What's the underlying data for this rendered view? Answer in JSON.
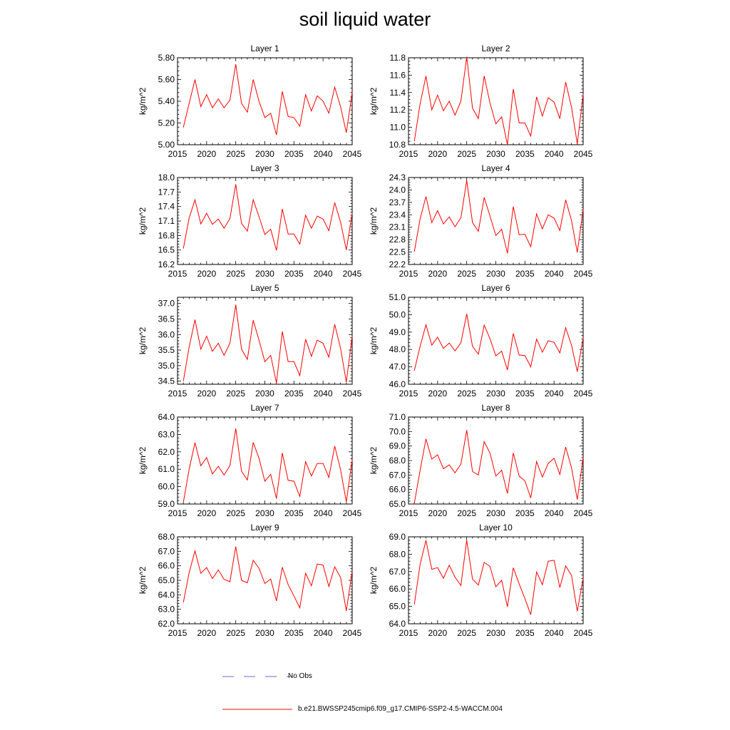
{
  "title": "soil liquid water",
  "legend": {
    "obs_label": "No Obs",
    "model_label": "b.e21.BWSSP245cmip6.f09_g17.CMIP6-SSP2-4.5-WACCM.004",
    "obs_color": "#6b6bd6",
    "model_color": "#ff0000"
  },
  "chart_data": [
    {
      "type": "line",
      "title": "Layer 1",
      "ylabel": "kg/m^2",
      "xlim": [
        2015,
        2045
      ],
      "ylim": [
        5.0,
        5.8
      ],
      "xticks": [
        2015,
        2020,
        2025,
        2030,
        2035,
        2040,
        2045
      ],
      "yticks": [
        "5.00",
        "5.20",
        "5.40",
        "5.60",
        "5.80"
      ],
      "x": [
        2016,
        2017,
        2018,
        2019,
        2020,
        2021,
        2022,
        2023,
        2024,
        2025,
        2026,
        2027,
        2028,
        2029,
        2030,
        2031,
        2032,
        2033,
        2034,
        2035,
        2036,
        2037,
        2038,
        2039,
        2040,
        2041,
        2042,
        2043,
        2044,
        2045
      ],
      "series": [
        {
          "color": "#ff0000",
          "values": [
            5.16,
            5.38,
            5.6,
            5.35,
            5.46,
            5.34,
            5.42,
            5.34,
            5.41,
            5.74,
            5.38,
            5.3,
            5.6,
            5.4,
            5.25,
            5.29,
            5.09,
            5.49,
            5.26,
            5.25,
            5.17,
            5.46,
            5.31,
            5.45,
            5.4,
            5.29,
            5.53,
            5.35,
            5.11,
            5.48
          ]
        }
      ]
    },
    {
      "type": "line",
      "title": "Layer 2",
      "ylabel": "kg/m^2",
      "xlim": [
        2015,
        2045
      ],
      "ylim": [
        10.8,
        11.8
      ],
      "xticks": [
        2015,
        2020,
        2025,
        2030,
        2035,
        2040,
        2045
      ],
      "yticks": [
        "10.8",
        "11.0",
        "11.2",
        "11.4",
        "11.6",
        "11.8"
      ],
      "x": [
        2016,
        2017,
        2018,
        2019,
        2020,
        2021,
        2022,
        2023,
        2024,
        2025,
        2026,
        2027,
        2028,
        2029,
        2030,
        2031,
        2032,
        2033,
        2034,
        2035,
        2036,
        2037,
        2038,
        2039,
        2040,
        2041,
        2042,
        2043,
        2044,
        2045
      ],
      "series": [
        {
          "color": "#ff0000",
          "values": [
            10.84,
            11.27,
            11.59,
            11.2,
            11.37,
            11.19,
            11.3,
            11.14,
            11.3,
            11.81,
            11.22,
            11.1,
            11.59,
            11.28,
            11.04,
            11.12,
            10.8,
            11.44,
            11.05,
            11.05,
            10.9,
            11.35,
            11.13,
            11.34,
            11.29,
            11.1,
            11.52,
            11.23,
            10.81,
            11.38
          ]
        }
      ]
    },
    {
      "type": "line",
      "title": "Layer 3",
      "ylabel": "kg/m^2",
      "xlim": [
        2015,
        2045
      ],
      "ylim": [
        16.2,
        18.0
      ],
      "xticks": [
        2015,
        2020,
        2025,
        2030,
        2035,
        2040,
        2045
      ],
      "yticks": [
        "16.2",
        "16.5",
        "16.8",
        "17.1",
        "17.4",
        "17.7",
        "18.0"
      ],
      "x": [
        2016,
        2017,
        2018,
        2019,
        2020,
        2021,
        2022,
        2023,
        2024,
        2025,
        2026,
        2027,
        2028,
        2029,
        2030,
        2031,
        2032,
        2033,
        2034,
        2035,
        2036,
        2037,
        2038,
        2039,
        2040,
        2041,
        2042,
        2043,
        2044,
        2045
      ],
      "series": [
        {
          "color": "#ff0000",
          "values": [
            16.53,
            17.16,
            17.54,
            17.04,
            17.26,
            17.03,
            17.14,
            16.95,
            17.15,
            17.86,
            17.05,
            16.89,
            17.54,
            17.19,
            16.82,
            16.93,
            16.49,
            17.35,
            16.83,
            16.83,
            16.62,
            17.22,
            16.95,
            17.2,
            17.14,
            16.9,
            17.48,
            17.08,
            16.5,
            17.26
          ]
        }
      ]
    },
    {
      "type": "line",
      "title": "Layer 4",
      "ylabel": "kg/m^2",
      "xlim": [
        2015,
        2045
      ],
      "ylim": [
        22.2,
        24.3
      ],
      "xticks": [
        2015,
        2020,
        2025,
        2030,
        2035,
        2040,
        2045
      ],
      "yticks": [
        "22.2",
        "22.5",
        "22.8",
        "23.1",
        "23.4",
        "23.7",
        "24.0",
        "24.3"
      ],
      "x": [
        2016,
        2017,
        2018,
        2019,
        2020,
        2021,
        2022,
        2023,
        2024,
        2025,
        2026,
        2027,
        2028,
        2029,
        2030,
        2031,
        2032,
        2033,
        2034,
        2035,
        2036,
        2037,
        2038,
        2039,
        2040,
        2041,
        2042,
        2043,
        2044,
        2045
      ],
      "series": [
        {
          "color": "#ff0000",
          "values": [
            22.51,
            23.3,
            23.84,
            23.21,
            23.5,
            23.18,
            23.35,
            23.11,
            23.33,
            24.23,
            23.21,
            23.0,
            23.82,
            23.37,
            22.9,
            23.05,
            22.47,
            23.6,
            22.92,
            22.93,
            22.63,
            23.42,
            23.06,
            23.4,
            23.32,
            23.02,
            23.76,
            23.26,
            22.49,
            23.53
          ]
        }
      ]
    },
    {
      "type": "line",
      "title": "Layer 5",
      "ylabel": "kg/m^2",
      "xlim": [
        2015,
        2045
      ],
      "ylim": [
        34.4,
        37.2
      ],
      "xticks": [
        2015,
        2020,
        2025,
        2030,
        2035,
        2040,
        2045
      ],
      "yticks": [
        "34.5",
        "35.0",
        "35.5",
        "36.0",
        "36.5",
        "37.0"
      ],
      "x": [
        2016,
        2017,
        2018,
        2019,
        2020,
        2021,
        2022,
        2023,
        2024,
        2025,
        2026,
        2027,
        2028,
        2029,
        2030,
        2031,
        2032,
        2033,
        2034,
        2035,
        2036,
        2037,
        2038,
        2039,
        2040,
        2041,
        2042,
        2043,
        2044,
        2045
      ],
      "series": [
        {
          "color": "#ff0000",
          "values": [
            34.5,
            35.6,
            36.48,
            35.53,
            35.95,
            35.46,
            35.72,
            35.33,
            35.72,
            36.96,
            35.53,
            35.2,
            36.46,
            35.82,
            35.13,
            35.33,
            34.44,
            36.1,
            35.13,
            35.13,
            34.68,
            35.85,
            35.3,
            35.82,
            35.72,
            35.27,
            36.33,
            35.56,
            34.47,
            35.95
          ]
        }
      ]
    },
    {
      "type": "line",
      "title": "Layer 6",
      "ylabel": "kg/m^2",
      "xlim": [
        2015,
        2045
      ],
      "ylim": [
        46.0,
        51.0
      ],
      "xticks": [
        2015,
        2020,
        2025,
        2030,
        2035,
        2040,
        2045
      ],
      "yticks": [
        "46.0",
        "47.0",
        "48.0",
        "49.0",
        "50.0",
        "51.0"
      ],
      "x": [
        2016,
        2017,
        2018,
        2019,
        2020,
        2021,
        2022,
        2023,
        2024,
        2025,
        2026,
        2027,
        2028,
        2029,
        2030,
        2031,
        2032,
        2033,
        2034,
        2035,
        2036,
        2037,
        2038,
        2039,
        2040,
        2041,
        2042,
        2043,
        2044,
        2045
      ],
      "series": [
        {
          "color": "#ff0000",
          "values": [
            46.78,
            48.18,
            49.42,
            48.25,
            48.7,
            48.06,
            48.37,
            47.92,
            48.38,
            50.04,
            48.18,
            47.73,
            49.4,
            48.62,
            47.63,
            47.9,
            46.82,
            48.92,
            47.68,
            47.65,
            47.0,
            48.6,
            47.85,
            48.5,
            48.42,
            47.8,
            49.25,
            48.25,
            46.72,
            48.67
          ]
        }
      ]
    },
    {
      "type": "line",
      "title": "Layer 7",
      "ylabel": "kg/m^2",
      "xlim": [
        2015,
        2045
      ],
      "ylim": [
        59.0,
        64.0
      ],
      "xticks": [
        2015,
        2020,
        2025,
        2030,
        2035,
        2040,
        2045
      ],
      "yticks": [
        "59.0",
        "60.0",
        "61.0",
        "62.0",
        "63.0",
        "64.0"
      ],
      "x": [
        2016,
        2017,
        2018,
        2019,
        2020,
        2021,
        2022,
        2023,
        2024,
        2025,
        2026,
        2027,
        2028,
        2029,
        2030,
        2031,
        2032,
        2033,
        2034,
        2035,
        2036,
        2037,
        2038,
        2039,
        2040,
        2041,
        2042,
        2043,
        2044,
        2045
      ],
      "series": [
        {
          "color": "#ff0000",
          "values": [
            59.1,
            60.99,
            62.53,
            61.2,
            61.67,
            60.73,
            61.17,
            60.67,
            61.2,
            63.34,
            60.89,
            60.38,
            62.54,
            61.63,
            60.31,
            60.71,
            59.31,
            61.93,
            60.36,
            60.31,
            59.44,
            61.43,
            60.61,
            61.33,
            61.33,
            60.53,
            62.33,
            60.98,
            59.12,
            61.55
          ]
        }
      ]
    },
    {
      "type": "line",
      "title": "Layer 8",
      "ylabel": "kg/m^2",
      "xlim": [
        2015,
        2045
      ],
      "ylim": [
        65.0,
        71.0
      ],
      "xticks": [
        2015,
        2020,
        2025,
        2030,
        2035,
        2040,
        2045
      ],
      "yticks": [
        "65.0",
        "66.0",
        "67.0",
        "68.0",
        "69.0",
        "70.0",
        "71.0"
      ],
      "x": [
        2016,
        2017,
        2018,
        2019,
        2020,
        2021,
        2022,
        2023,
        2024,
        2025,
        2026,
        2027,
        2028,
        2029,
        2030,
        2031,
        2032,
        2033,
        2034,
        2035,
        2036,
        2037,
        2038,
        2039,
        2040,
        2041,
        2042,
        2043,
        2044,
        2045
      ],
      "series": [
        {
          "color": "#ff0000",
          "values": [
            65.06,
            67.32,
            69.49,
            68.1,
            68.4,
            67.43,
            67.7,
            67.15,
            67.75,
            70.1,
            67.24,
            67.0,
            69.3,
            68.52,
            66.93,
            67.33,
            65.73,
            68.52,
            66.93,
            66.6,
            65.42,
            67.93,
            66.86,
            67.8,
            68.16,
            67.04,
            68.93,
            67.5,
            65.31,
            68.22
          ]
        }
      ]
    },
    {
      "type": "line",
      "title": "Layer 9",
      "ylabel": "kg/m^2",
      "xlim": [
        2015,
        2045
      ],
      "ylim": [
        62.0,
        68.0
      ],
      "xticks": [
        2015,
        2020,
        2025,
        2030,
        2035,
        2040,
        2045
      ],
      "yticks": [
        "62.0",
        "63.0",
        "64.0",
        "65.0",
        "66.0",
        "67.0",
        "68.0"
      ],
      "x": [
        2016,
        2017,
        2018,
        2019,
        2020,
        2021,
        2022,
        2023,
        2024,
        2025,
        2026,
        2027,
        2028,
        2029,
        2030,
        2031,
        2032,
        2033,
        2034,
        2035,
        2036,
        2037,
        2038,
        2039,
        2040,
        2041,
        2042,
        2043,
        2044,
        2045
      ],
      "series": [
        {
          "color": "#ff0000",
          "values": [
            63.47,
            65.53,
            67.03,
            65.48,
            65.88,
            65.12,
            65.72,
            65.07,
            64.9,
            67.33,
            65.0,
            64.83,
            66.38,
            65.83,
            64.78,
            65.09,
            63.58,
            65.9,
            64.7,
            63.93,
            63.1,
            65.48,
            64.62,
            66.12,
            66.05,
            64.57,
            65.93,
            65.2,
            62.88,
            65.63
          ]
        }
      ]
    },
    {
      "type": "line",
      "title": "Layer 10",
      "ylabel": "kg/m^2",
      "xlim": [
        2015,
        2045
      ],
      "ylim": [
        64.0,
        69.0
      ],
      "xticks": [
        2015,
        2020,
        2025,
        2030,
        2035,
        2040,
        2045
      ],
      "yticks": [
        "64.0",
        "65.0",
        "66.0",
        "67.0",
        "68.0",
        "69.0"
      ],
      "x": [
        2016,
        2017,
        2018,
        2019,
        2020,
        2021,
        2022,
        2023,
        2024,
        2025,
        2026,
        2027,
        2028,
        2029,
        2030,
        2031,
        2032,
        2033,
        2034,
        2035,
        2036,
        2037,
        2038,
        2039,
        2040,
        2041,
        2042,
        2043,
        2044,
        2045
      ],
      "series": [
        {
          "color": "#ff0000",
          "values": [
            65.12,
            67.42,
            68.8,
            67.13,
            67.23,
            66.62,
            67.37,
            66.68,
            66.2,
            68.8,
            66.57,
            66.23,
            67.53,
            67.3,
            66.13,
            66.5,
            64.98,
            67.22,
            66.3,
            65.45,
            64.52,
            66.98,
            66.25,
            67.6,
            67.65,
            66.08,
            67.32,
            66.78,
            64.72,
            66.62
          ]
        }
      ]
    }
  ]
}
